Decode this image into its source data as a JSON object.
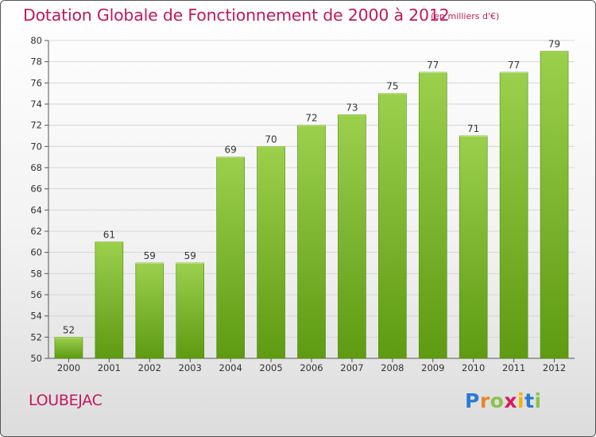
{
  "header": {
    "title": "Dotation Globale de Fonctionnement de 2000 à 2012",
    "subtitle": "(en milliers d'€)"
  },
  "footer": {
    "commune": "LOUBEJAC",
    "logo_text": "Proxiti"
  },
  "colors": {
    "title": "#c2185b",
    "bar_top": "#9bd04d",
    "bar_bottom": "#5e9a12",
    "grid": "#d6d6d6",
    "axis": "#555555"
  },
  "chart_data": {
    "type": "bar",
    "title": "Dotation Globale de Fonctionnement de 2000 à 2012",
    "subtitle": "(en milliers d'€)",
    "xlabel": "",
    "ylabel": "",
    "categories": [
      "2000",
      "2001",
      "2002",
      "2003",
      "2004",
      "2005",
      "2006",
      "2007",
      "2008",
      "2009",
      "2010",
      "2011",
      "2012"
    ],
    "values": [
      52,
      61,
      59,
      59,
      69,
      70,
      72,
      73,
      75,
      77,
      71,
      77,
      79
    ],
    "ylim": [
      50,
      80
    ],
    "yticks": [
      50,
      52,
      54,
      56,
      58,
      60,
      62,
      64,
      66,
      68,
      70,
      72,
      74,
      76,
      78,
      80
    ],
    "grid": true,
    "data_labels": true
  }
}
